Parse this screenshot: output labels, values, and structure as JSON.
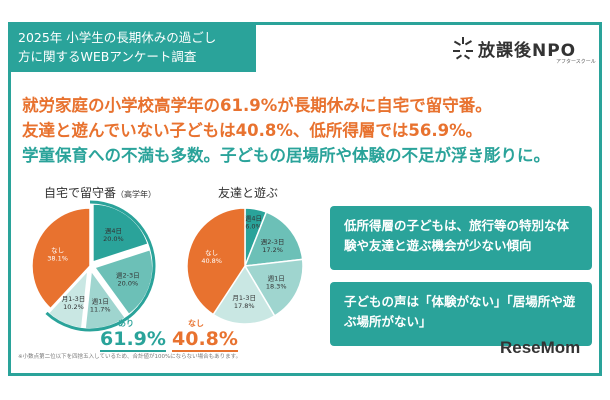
{
  "header": {
    "title_line1": "2025年 小学生の長期休みの過ごし",
    "title_line2": "方に関するWEBアンケート調査",
    "logo_text": "放課後NPO",
    "logo_sub": "アフタースクール"
  },
  "headline": {
    "line1": "就労家庭の小学校高学年の61.9%が長期休みに自宅で留守番。",
    "line2": "友達と遊んでいない子どもは40.8%、低所得層では56.9%。",
    "line3": "学童保育への不満も多数。子どもの居場所や体験の不足が浮き彫りに。"
  },
  "chart_data": [
    {
      "type": "pie",
      "title": "自宅で留守番",
      "subtitle": "（高学年）",
      "slices": [
        {
          "label": "週4日",
          "value": 20.0,
          "color": "#2aa39a"
        },
        {
          "label": "週2-3日",
          "value": 20.0,
          "color": "#6cc0b7"
        },
        {
          "label": "週1日",
          "value": 11.7,
          "color": "#9fd5cf"
        },
        {
          "label": "月1-3日",
          "value": 10.2,
          "color": "#c9e7e3"
        },
        {
          "label": "なし",
          "value": 38.1,
          "color": "#e8722f"
        }
      ],
      "summary_label": "あり",
      "summary_value": "61.9%",
      "summary_color": "#2aa39a"
    },
    {
      "type": "pie",
      "title": "友達と遊ぶ",
      "slices": [
        {
          "label": "週4日",
          "value": 6.0,
          "color": "#2aa39a"
        },
        {
          "label": "週2-3日",
          "value": 17.2,
          "color": "#6cc0b7"
        },
        {
          "label": "週1日",
          "value": 18.3,
          "color": "#9fd5cf"
        },
        {
          "label": "月1-3日",
          "value": 17.8,
          "color": "#c9e7e3"
        },
        {
          "label": "なし",
          "value": 40.8,
          "color": "#e8722f"
        }
      ],
      "summary_label": "なし",
      "summary_value": "40.8%",
      "summary_color": "#e8722f"
    }
  ],
  "cards": {
    "card1": "低所得層の子どもは、旅行等の特別な体験や友達と遊ぶ機会が少ない傾向",
    "card2": "子どもの声は「体験がない」「居場所や遊ぶ場所がない」"
  },
  "footnote": "※小数点第二位以下を四捨五入しているため、合計値が100%にならない場合もあります。",
  "watermark": "ReseMom"
}
